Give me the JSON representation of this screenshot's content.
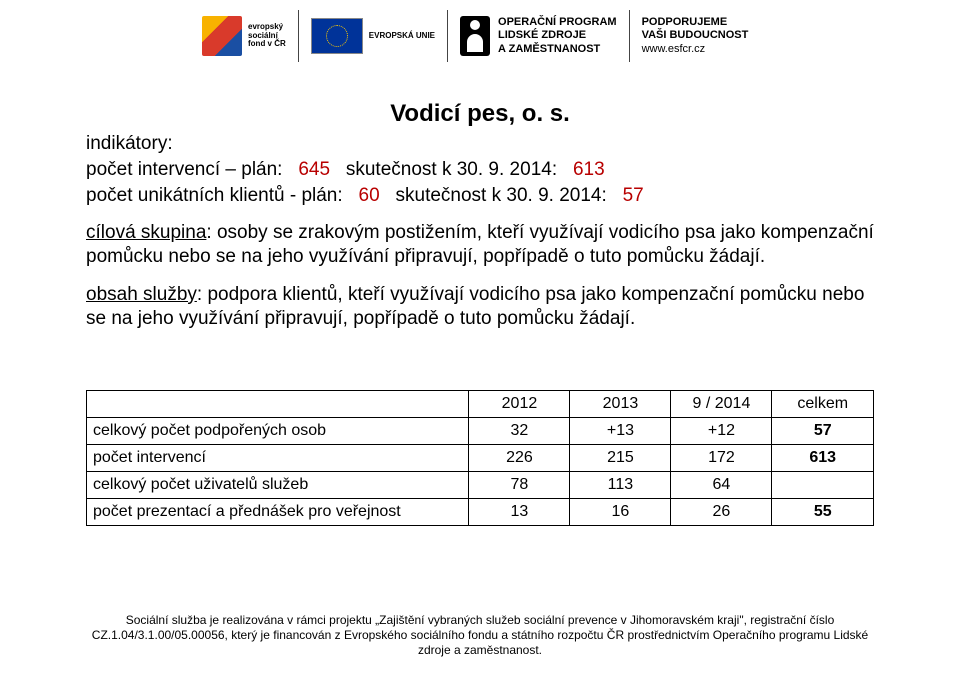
{
  "logos": {
    "esf": {
      "lines": [
        "evropský",
        "sociální",
        "fond v ČR"
      ]
    },
    "eu": {
      "label": "EVROPSKÁ UNIE"
    },
    "op": {
      "line1": "OPERAČNÍ PROGRAM",
      "line2": "LIDSKÉ ZDROJE",
      "line3": "A ZAMĚSTNANOST"
    },
    "support": {
      "line1": "PODPORUJEME",
      "line2": "VAŠI BUDOUCNOST",
      "url": "www.esfcr.cz"
    }
  },
  "title": "Vodicí pes, o. s.",
  "indikatory_label": "indikátory:",
  "intervence": {
    "prefix": "počet intervencí – plán:",
    "plan": "645",
    "mid": "skutečnost k 30. 9. 2014:",
    "actual": "613"
  },
  "klienti": {
    "prefix": "počet unikátních klientů - plán:",
    "plan": "60",
    "mid": "skutečnost  k 30. 9. 2014:",
    "actual": "57"
  },
  "cilova_label": "cílová skupina",
  "cilova_text": ": osoby se zrakovým postižením, kteří využívají vodicího psa jako kompenzační pomůcku nebo se na jeho využívání připravují, popřípadě o tuto pomůcku žádají.",
  "obsah_label": "obsah služby",
  "obsah_text": ": podpora klientů, kteří využívají vodicího psa jako kompenzační pomůcku nebo se na jeho využívání připravují, popřípadě o tuto pomůcku žádají.",
  "table": {
    "headers": [
      "",
      "2012",
      "2013",
      "9 / 2014",
      "celkem"
    ],
    "rows": [
      {
        "label": "celkový počet podpořených osob",
        "v": [
          "32",
          "+13",
          "+12"
        ],
        "total": "57"
      },
      {
        "label": "počet intervencí",
        "v": [
          "226",
          "215",
          "172"
        ],
        "total": "613"
      },
      {
        "label": "celkový počet uživatelů služeb",
        "v": [
          "78",
          "113",
          "64"
        ],
        "total": ""
      },
      {
        "label": "počet prezentací a přednášek pro veřejnost",
        "v": [
          "13",
          "16",
          "26"
        ],
        "total": "55"
      }
    ]
  },
  "footer": "Sociální služba je realizována v rámci projektu „Zajištění vybraných služeb sociální prevence v Jihomoravském kraji\", registrační číslo CZ.1.04/3.1.00/05.00056, který je financován z Evropského sociálního fondu a státního rozpočtu ČR prostřednictvím Operačního programu Lidské zdroje a zaměstnanost."
}
